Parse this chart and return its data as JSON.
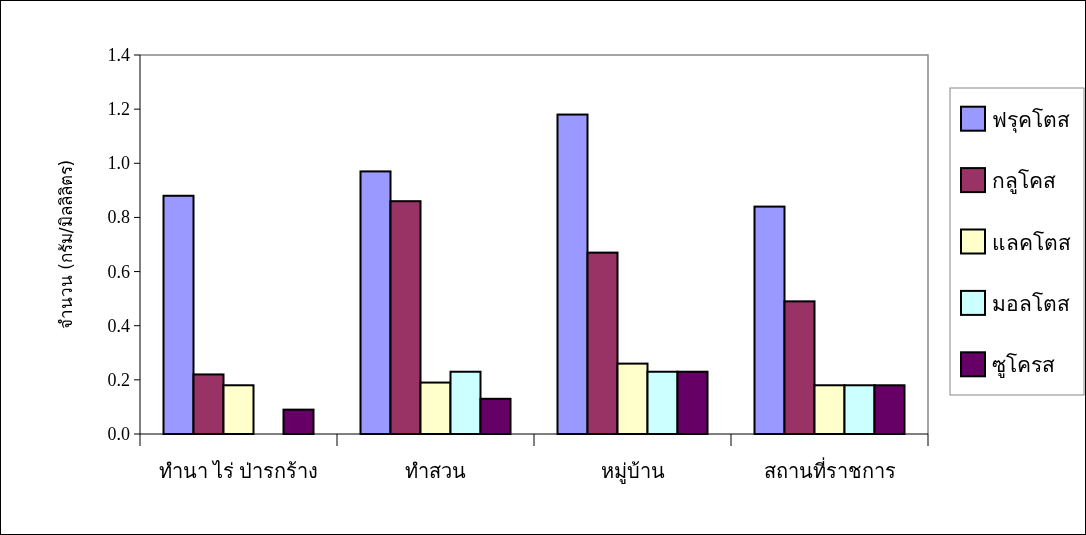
{
  "chart_data": {
    "type": "bar",
    "ylabel": "จำนวน (กรัม/มิลลิลิตร)",
    "categories": [
      "ทำนา ไร่ ป่ารกร้าง",
      "ทำสวน",
      "หมู่บ้าน",
      "สถานที่ราชการ"
    ],
    "series": [
      {
        "name": "ฟรุคโตส",
        "color": "#9999ff",
        "values": [
          0.88,
          0.97,
          1.18,
          0.84
        ]
      },
      {
        "name": "กลูโคส",
        "color": "#993366",
        "values": [
          0.22,
          0.86,
          0.67,
          0.49
        ]
      },
      {
        "name": "แลคโตส",
        "color": "#ffffcc",
        "values": [
          0.18,
          0.19,
          0.26,
          0.18
        ]
      },
      {
        "name": "มอลโตส",
        "color": "#ccffff",
        "values": [
          null,
          0.23,
          0.23,
          0.18
        ]
      },
      {
        "name": "ซูโครส",
        "color": "#660066",
        "values": [
          0.09,
          0.13,
          0.23,
          0.18
        ]
      }
    ],
    "ylim": [
      0,
      1.4
    ],
    "yticks": [
      {
        "value": 0,
        "label": "0.0"
      },
      0.2,
      0.4,
      0.6,
      0.8,
      {
        "value": 1,
        "label": "1.0"
      },
      1.2,
      1.4
    ],
    "legend": "right"
  }
}
